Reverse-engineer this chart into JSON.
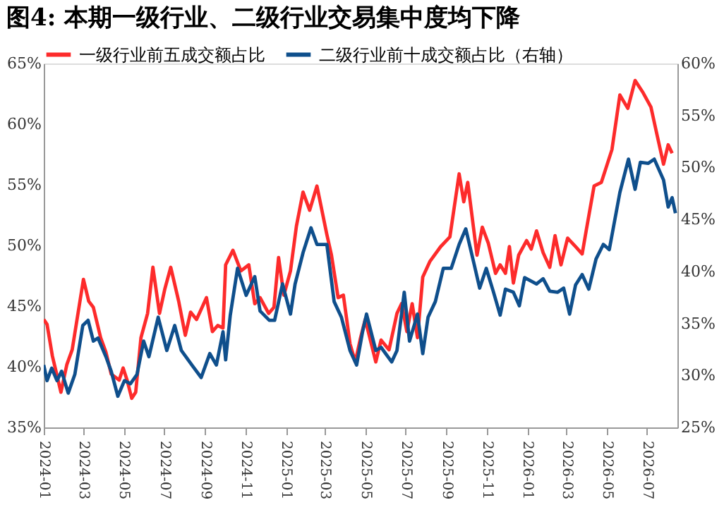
{
  "chart_data": {
    "type": "line",
    "title": "图4:  本期一级行业、二级行业交易集中度均下降",
    "xlim": [
      "2024-01-01",
      "2026-08-16"
    ],
    "xticks": [
      "2024-01",
      "2024-03",
      "2024-05",
      "2024-07",
      "2024-09",
      "2024-11",
      "2025-01",
      "2025-03",
      "2025-05",
      "2025-07",
      "2025-09",
      "2025-11",
      "2026-01",
      "2026-03",
      "2026-05",
      "2026-07"
    ],
    "ylim": [
      35,
      65
    ],
    "yticks": [
      {
        "value": 35,
        "label": "35%"
      },
      {
        "value": 40,
        "label": "40%"
      },
      {
        "value": 45,
        "label": "45%"
      },
      {
        "value": 50,
        "label": "50%"
      },
      {
        "value": 55,
        "label": "55%"
      },
      {
        "value": 60,
        "label": "60%"
      },
      {
        "value": 65,
        "label": "65%"
      }
    ],
    "y2lim": [
      25,
      60
    ],
    "y2ticks": [
      {
        "value": 25,
        "label": "25%"
      },
      {
        "value": 30,
        "label": "30%"
      },
      {
        "value": 35,
        "label": "35%"
      },
      {
        "value": 40,
        "label": "40%"
      },
      {
        "value": 45,
        "label": "45%"
      },
      {
        "value": 50,
        "label": "50%"
      },
      {
        "value": 55,
        "label": "55%"
      },
      {
        "value": 60,
        "label": "60%"
      }
    ],
    "grid": false,
    "legend": "top",
    "marker": "none",
    "line_style": "solid",
    "series": [
      {
        "name": "一级行业前五成交额占比",
        "color": "#fd2b2b",
        "x": [
          "2024-01-01",
          "2024-01-06",
          "2024-01-14",
          "2024-01-27",
          "2024-02-05",
          "2024-02-13",
          "2024-03-01",
          "2024-03-09",
          "2024-03-16",
          "2024-03-27",
          "2024-04-04",
          "2024-04-12",
          "2024-04-24",
          "2024-04-30",
          "2024-05-06",
          "2024-05-13",
          "2024-05-19",
          "2024-05-27",
          "2024-06-06",
          "2024-06-14",
          "2024-06-24",
          "2024-07-02",
          "2024-07-11",
          "2024-07-23",
          "2024-08-02",
          "2024-08-10",
          "2024-08-19",
          "2024-09-03",
          "2024-09-12",
          "2024-09-20",
          "2024-09-28",
          "2024-10-02",
          "2024-10-13",
          "2024-10-25",
          "2024-11-06",
          "2024-11-15",
          "2024-11-23",
          "2024-12-06",
          "2024-12-14",
          "2024-12-21",
          "2024-12-29",
          "2025-01-08",
          "2025-01-17",
          "2025-01-27",
          "2025-02-06",
          "2025-02-17",
          "2025-03-04",
          "2025-03-11",
          "2025-03-21",
          "2025-03-29",
          "2025-04-08",
          "2025-04-16",
          "2025-04-24",
          "2025-05-01",
          "2025-05-17",
          "2025-05-25",
          "2025-06-06",
          "2025-06-18",
          "2025-06-25",
          "2025-07-03",
          "2025-07-11",
          "2025-07-19",
          "2025-07-27",
          "2025-08-07",
          "2025-08-23",
          "2025-09-06",
          "2025-09-20",
          "2025-09-27",
          "2025-10-03",
          "2025-10-17",
          "2025-10-25",
          "2025-11-03",
          "2025-11-14",
          "2025-11-21",
          "2025-11-29",
          "2025-12-05",
          "2025-12-11",
          "2025-12-19",
          "2025-12-31",
          "2026-01-07",
          "2026-01-15",
          "2026-01-25",
          "2026-02-04",
          "2026-02-12",
          "2026-02-21",
          "2026-03-03",
          "2026-03-15",
          "2026-03-25",
          "2026-03-31",
          "2026-04-12",
          "2026-04-23",
          "2026-05-09",
          "2026-05-21",
          "2026-06-02",
          "2026-06-13",
          "2026-06-25",
          "2026-07-07",
          "2026-07-15",
          "2026-07-26",
          "2026-08-02",
          "2026-08-08"
        ],
        "values": [
          43.9,
          43.5,
          40.9,
          37.9,
          40.2,
          41.4,
          47.2,
          45.4,
          44.9,
          42.4,
          41.2,
          39.4,
          38.9,
          39.9,
          38.9,
          37.4,
          37.9,
          42.4,
          44.4,
          48.2,
          44.4,
          46.4,
          48.2,
          45.4,
          42.6,
          44.5,
          43.9,
          45.7,
          42.9,
          43.4,
          43.2,
          48.4,
          49.6,
          47.9,
          48.4,
          45.2,
          45.7,
          44.4,
          44.9,
          49.0,
          45.9,
          47.9,
          51.6,
          54.4,
          52.9,
          54.9,
          50.9,
          49.2,
          45.7,
          45.9,
          41.9,
          40.4,
          42.4,
          43.9,
          40.4,
          42.2,
          41.4,
          44.4,
          45.2,
          42.9,
          45.2,
          42.4,
          47.4,
          48.7,
          49.9,
          50.7,
          55.9,
          53.6,
          55.2,
          49.2,
          51.5,
          50.2,
          47.7,
          48.4,
          47.7,
          49.9,
          46.9,
          49.2,
          50.4,
          49.7,
          51.2,
          49.4,
          48.2,
          50.8,
          48.4,
          50.6,
          49.9,
          49.3,
          51.2,
          54.9,
          55.2,
          57.9,
          62.4,
          61.3,
          63.6,
          62.6,
          61.4,
          59.4,
          56.7,
          58.3,
          57.6
        ]
      },
      {
        "name": "二级行业前十成交额占比（右轴）",
        "color": "#0f4f8c",
        "axis": "y2",
        "x": [
          "2024-01-01",
          "2024-01-06",
          "2024-01-13",
          "2024-01-21",
          "2024-01-28",
          "2024-02-07",
          "2024-02-17",
          "2024-02-29",
          "2024-03-08",
          "2024-03-16",
          "2024-03-23",
          "2024-04-04",
          "2024-04-12",
          "2024-04-22",
          "2024-05-02",
          "2024-05-11",
          "2024-05-21",
          "2024-05-31",
          "2024-06-08",
          "2024-06-22",
          "2024-07-05",
          "2024-07-17",
          "2024-07-27",
          "2024-08-12",
          "2024-08-26",
          "2024-09-08",
          "2024-09-18",
          "2024-09-28",
          "2024-10-02",
          "2024-10-09",
          "2024-10-20",
          "2024-11-02",
          "2024-11-15",
          "2024-11-23",
          "2024-12-07",
          "2024-12-15",
          "2024-12-27",
          "2025-01-08",
          "2025-01-15",
          "2025-01-27",
          "2025-02-08",
          "2025-02-17",
          "2025-03-04",
          "2025-03-15",
          "2025-03-26",
          "2025-04-08",
          "2025-04-18",
          "2025-04-27",
          "2025-05-03",
          "2025-05-17",
          "2025-05-25",
          "2025-06-10",
          "2025-06-18",
          "2025-06-29",
          "2025-07-07",
          "2025-07-19",
          "2025-07-27",
          "2025-08-04",
          "2025-08-15",
          "2025-08-27",
          "2025-09-08",
          "2025-09-20",
          "2025-09-30",
          "2025-10-13",
          "2025-10-21",
          "2025-10-31",
          "2025-11-11",
          "2025-11-21",
          "2025-11-29",
          "2025-12-11",
          "2025-12-20",
          "2025-12-28",
          "2026-01-15",
          "2026-01-25",
          "2026-02-04",
          "2026-02-16",
          "2026-02-25",
          "2026-03-06",
          "2026-03-15",
          "2026-03-25",
          "2026-04-04",
          "2026-04-15",
          "2026-04-26",
          "2026-05-05",
          "2026-05-21",
          "2026-06-03",
          "2026-06-13",
          "2026-06-21",
          "2026-07-03",
          "2026-07-12",
          "2026-07-26",
          "2026-08-02",
          "2026-08-08",
          "2026-08-13"
        ],
        "values": [
          31.0,
          29.5,
          30.7,
          29.5,
          30.4,
          28.3,
          30.1,
          34.8,
          35.3,
          33.3,
          33.6,
          31.8,
          30.4,
          28.0,
          29.5,
          29.2,
          30.1,
          33.3,
          31.8,
          35.6,
          32.4,
          34.8,
          32.4,
          31.0,
          29.8,
          32.1,
          31.0,
          34.2,
          31.5,
          35.8,
          40.3,
          37.7,
          39.5,
          36.2,
          35.3,
          35.3,
          38.8,
          35.9,
          38.8,
          41.8,
          44.2,
          42.6,
          42.6,
          37.1,
          35.6,
          32.4,
          31.0,
          34.2,
          35.9,
          32.4,
          32.7,
          31.3,
          32.4,
          38.0,
          33.3,
          35.9,
          32.1,
          35.6,
          37.1,
          40.3,
          40.3,
          42.6,
          44.1,
          40.6,
          38.4,
          40.3,
          38.0,
          35.8,
          38.3,
          38.0,
          36.7,
          39.4,
          38.8,
          39.3,
          38.1,
          38.0,
          38.4,
          35.9,
          38.7,
          39.7,
          38.3,
          41.2,
          42.6,
          42.1,
          47.6,
          50.8,
          47.9,
          50.5,
          50.4,
          50.8,
          48.8,
          46.2,
          47.1,
          45.6
        ]
      }
    ]
  }
}
